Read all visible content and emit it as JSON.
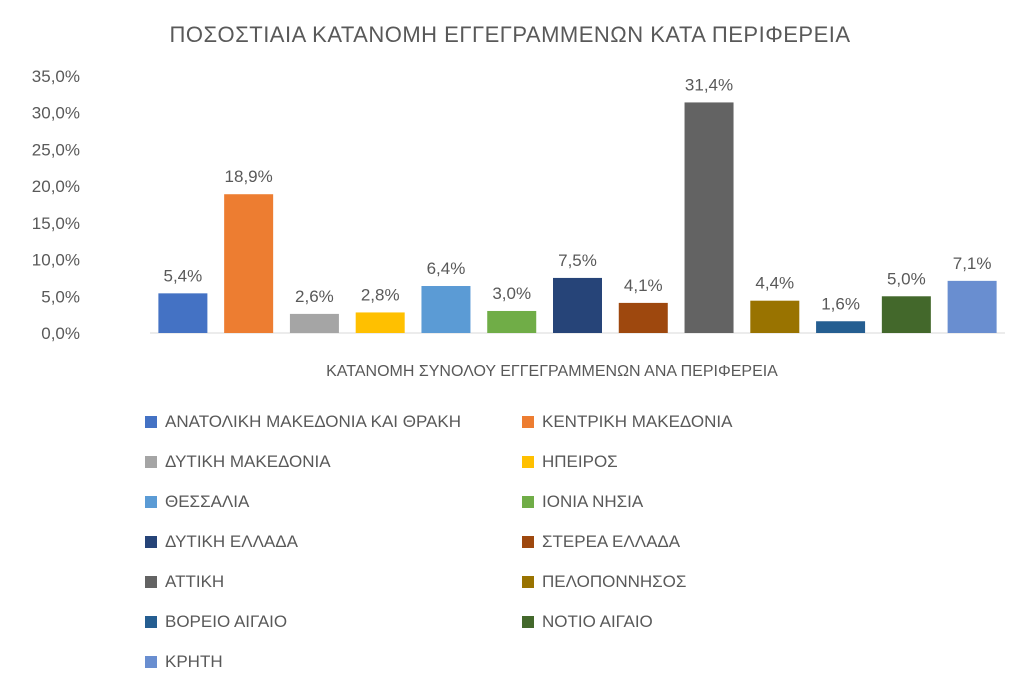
{
  "chart_data": {
    "type": "bar",
    "title": "ΠΟΣΟΣΤΙΑΙΑ ΚΑΤΑΝΟΜΗ ΕΓΓΕΓΡΑΜΜΕΝΩΝ ΚΑΤΑ ΠΕΡΙΦΕΡΕΙΑ",
    "xlabel": "ΚΑΤΑΝΟΜΗ ΣΥΝΟΛΟΥ ΕΓΓΕΓΡΑΜΜΕΝΩΝ  ΑΝΑ ΠΕΡΙΦΕΡΕΙΑ",
    "ylabel": "",
    "ylim": [
      0,
      35
    ],
    "yticks": [
      "0,0%",
      "5,0%",
      "10,0%",
      "15,0%",
      "20,0%",
      "25,0%",
      "30,0%",
      "35,0%"
    ],
    "grid": false,
    "legend_position": "bottom",
    "series": [
      {
        "name": "ΑΝΑΤΟΛΙΚΗ ΜΑΚΕΔΟΝΙΑ ΚΑΙ ΘΡΑΚΗ",
        "value": 5.4,
        "label": "5,4%",
        "color": "#4472C4"
      },
      {
        "name": "ΚΕΝΤΡΙΚΗ ΜΑΚΕΔΟΝΙΑ",
        "value": 18.9,
        "label": "18,9%",
        "color": "#ED7D31"
      },
      {
        "name": "ΔΥΤΙΚΗ ΜΑΚΕΔΟΝΙΑ",
        "value": 2.6,
        "label": "2,6%",
        "color": "#A5A5A5"
      },
      {
        "name": "ΗΠΕΙΡΟΣ",
        "value": 2.8,
        "label": "2,8%",
        "color": "#FFC000"
      },
      {
        "name": "ΘΕΣΣΑΛΙΑ",
        "value": 6.4,
        "label": "6,4%",
        "color": "#5B9BD5"
      },
      {
        "name": "ΙΟΝΙΑ ΝΗΣΙΑ",
        "value": 3.0,
        "label": "3,0%",
        "color": "#70AD47"
      },
      {
        "name": "ΔΥΤΙΚΗ ΕΛΛΑΔΑ",
        "value": 7.5,
        "label": "7,5%",
        "color": "#264478"
      },
      {
        "name": "ΣΤΕΡΕΑ ΕΛΛΑΔΑ",
        "value": 4.1,
        "label": "4,1%",
        "color": "#9E480E"
      },
      {
        "name": "ΑΤΤΙΚΗ",
        "value": 31.4,
        "label": "31,4%",
        "color": "#636363"
      },
      {
        "name": "ΠΕΛΟΠΟΝΝΗΣΟΣ",
        "value": 4.4,
        "label": "4,4%",
        "color": "#997300"
      },
      {
        "name": "ΒΟΡΕΙΟ ΑΙΓΑΙΟ",
        "value": 1.6,
        "label": "1,6%",
        "color": "#255E91"
      },
      {
        "name": "ΝΟΤΙΟ ΑΙΓΑΙΟ",
        "value": 5.0,
        "label": "5,0%",
        "color": "#43682B"
      },
      {
        "name": "ΚΡΗΤΗ",
        "value": 7.1,
        "label": "7,1%",
        "color": "#698ED0"
      }
    ]
  }
}
